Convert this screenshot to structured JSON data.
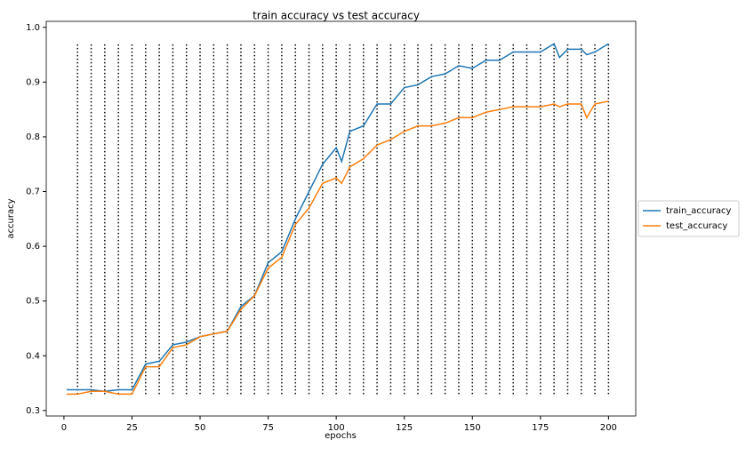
{
  "chart_data": {
    "type": "line",
    "title": "train accuracy vs test accuracy",
    "xlabel": "epochs",
    "ylabel": "accuracy",
    "x": [
      1,
      5,
      10,
      15,
      20,
      25,
      30,
      35,
      40,
      45,
      50,
      55,
      60,
      65,
      70,
      75,
      80,
      85,
      90,
      95,
      100,
      102,
      105,
      110,
      115,
      120,
      125,
      130,
      135,
      140,
      145,
      150,
      155,
      160,
      165,
      170,
      175,
      180,
      182,
      185,
      190,
      192,
      195,
      200
    ],
    "series": [
      {
        "name": "train_accuracy",
        "color": "#1f77b4",
        "values": [
          0.338,
          0.338,
          0.338,
          0.335,
          0.338,
          0.338,
          0.385,
          0.39,
          0.42,
          0.425,
          0.435,
          0.44,
          0.445,
          0.49,
          0.51,
          0.57,
          0.59,
          0.65,
          0.7,
          0.75,
          0.78,
          0.755,
          0.81,
          0.82,
          0.86,
          0.86,
          0.89,
          0.895,
          0.91,
          0.915,
          0.93,
          0.925,
          0.94,
          0.94,
          0.955,
          0.955,
          0.955,
          0.97,
          0.945,
          0.96,
          0.96,
          0.95,
          0.955,
          0.97
        ]
      },
      {
        "name": "test_accuracy",
        "color": "#ff7f0e",
        "values": [
          0.33,
          0.33,
          0.335,
          0.335,
          0.33,
          0.33,
          0.38,
          0.38,
          0.415,
          0.42,
          0.435,
          0.44,
          0.445,
          0.485,
          0.51,
          0.56,
          0.58,
          0.64,
          0.67,
          0.715,
          0.725,
          0.715,
          0.745,
          0.76,
          0.785,
          0.795,
          0.81,
          0.82,
          0.82,
          0.825,
          0.835,
          0.835,
          0.845,
          0.85,
          0.855,
          0.855,
          0.855,
          0.86,
          0.855,
          0.86,
          0.86,
          0.835,
          0.86,
          0.865
        ]
      }
    ],
    "vlines": {
      "x": [
        5,
        10,
        15,
        20,
        25,
        30,
        35,
        40,
        45,
        50,
        55,
        60,
        65,
        70,
        75,
        80,
        85,
        90,
        95,
        100,
        105,
        110,
        115,
        120,
        125,
        130,
        135,
        140,
        145,
        150,
        155,
        160,
        165,
        170,
        175,
        180,
        185,
        190,
        195,
        200
      ],
      "ymin": 0.33,
      "ymax": 0.97,
      "color": "#000000"
    },
    "xlim": [
      -6.5,
      210
    ],
    "ylim": [
      0.29,
      1.011
    ],
    "xticks": [
      0,
      25,
      50,
      75,
      100,
      125,
      150,
      175,
      200
    ],
    "yticks": [
      0.3,
      0.4,
      0.5,
      0.6,
      0.7,
      0.8,
      0.9,
      {
        "value": 1,
        "label": "1.0"
      }
    ],
    "legend": "center right outside"
  }
}
